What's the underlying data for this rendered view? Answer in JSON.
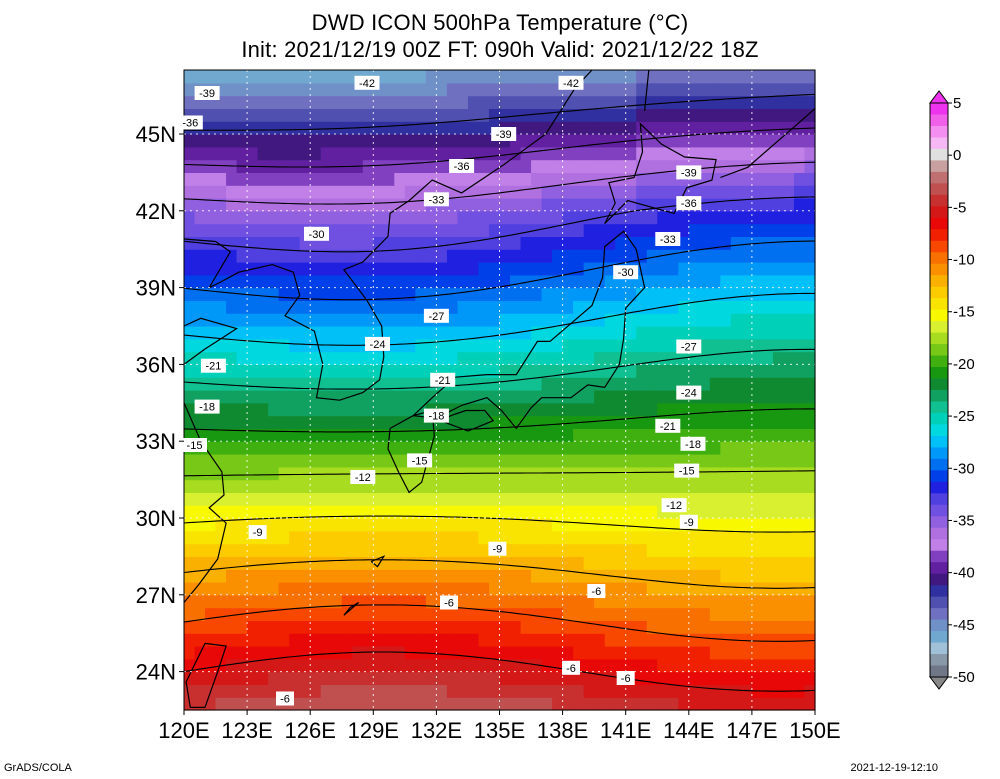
{
  "title": {
    "line1": "DWD ICON 500hPa Temperature (°C)",
    "line2": "Init: 2021/12/19 00Z  FT: 090h  Valid: 2021/12/22 18Z"
  },
  "axes": {
    "lat_labels": [
      "45N",
      "42N",
      "39N",
      "36N",
      "33N",
      "30N",
      "27N",
      "24N"
    ],
    "lat_values": [
      45,
      42,
      39,
      36,
      33,
      30,
      27,
      24
    ],
    "lon_labels": [
      "120E",
      "123E",
      "126E",
      "129E",
      "132E",
      "135E",
      "138E",
      "141E",
      "144E",
      "147E",
      "150E"
    ],
    "lon_values": [
      120,
      123,
      126,
      129,
      132,
      135,
      138,
      141,
      144,
      147,
      150
    ],
    "lat_range": [
      22.5,
      47.5
    ],
    "lon_range": [
      120,
      150
    ]
  },
  "colorbar": {
    "labels": [
      "5",
      "0",
      "-5",
      "-10",
      "-15",
      "-20",
      "-25",
      "-30",
      "-35",
      "-40",
      "-45",
      "-50"
    ],
    "label_values": [
      5,
      0,
      -5,
      -10,
      -15,
      -20,
      -25,
      -30,
      -35,
      -40,
      -45,
      -50
    ],
    "range": [
      -50,
      5
    ],
    "colors": [
      "#ee33ee",
      "#f060e8",
      "#f48ef0",
      "#f6b8f4",
      "#e0e0e0",
      "#c8a0a0",
      "#c07070",
      "#c05050",
      "#c83030",
      "#d41818",
      "#e80808",
      "#f02000",
      "#f84800",
      "#f87000",
      "#fa9000",
      "#fab000",
      "#fccc00",
      "#f8e400",
      "#f8f800",
      "#d8f030",
      "#a8dc20",
      "#78c818",
      "#40b010",
      "#189810",
      "#108a30",
      "#10a060",
      "#10c090",
      "#00d0b8",
      "#00d8e0",
      "#00c0f8",
      "#0098f8",
      "#0070f0",
      "#0040e8",
      "#2020e0",
      "#5040e0",
      "#7050e0",
      "#9060e0",
      "#b070e0",
      "#c080e8",
      "#8040c0",
      "#6020a0",
      "#401880",
      "#3030a0",
      "#5050b0",
      "#7070c0",
      "#7090c8",
      "#70a8d0",
      "#a0c0d8",
      "#8898a8",
      "#707888"
    ],
    "colors_note": "",
    "arrow_top_color": "#ee33ee",
    "arrow_bottom_color": "#888888"
  },
  "contour_labels": [
    {
      "text": "-42",
      "lon": 128.7,
      "lat": 47.0
    },
    {
      "text": "-42",
      "lon": 138.4,
      "lat": 47.0
    },
    {
      "text": "-39",
      "lon": 121.1,
      "lat": 46.6
    },
    {
      "text": "-39",
      "lon": 135.2,
      "lat": 45.0
    },
    {
      "text": "-39",
      "lon": 144.0,
      "lat": 43.5
    },
    {
      "text": "-36",
      "lon": 120.3,
      "lat": 45.45
    },
    {
      "text": "-36",
      "lon": 133.2,
      "lat": 43.75
    },
    {
      "text": "-36",
      "lon": 144.0,
      "lat": 42.3
    },
    {
      "text": "-33",
      "lon": 132.0,
      "lat": 42.45
    },
    {
      "text": "-33",
      "lon": 143.0,
      "lat": 40.9
    },
    {
      "text": "-30",
      "lon": 126.3,
      "lat": 41.1
    },
    {
      "text": "-30",
      "lon": 141.0,
      "lat": 39.6
    },
    {
      "text": "-27",
      "lon": 132.0,
      "lat": 37.9
    },
    {
      "text": "-27",
      "lon": 144.0,
      "lat": 36.7
    },
    {
      "text": "-24",
      "lon": 129.2,
      "lat": 36.8
    },
    {
      "text": "-24",
      "lon": 144.0,
      "lat": 34.9
    },
    {
      "text": "-21",
      "lon": 121.4,
      "lat": 35.95
    },
    {
      "text": "-21",
      "lon": 132.3,
      "lat": 35.4
    },
    {
      "text": "-21",
      "lon": 143.0,
      "lat": 33.6
    },
    {
      "text": "-18",
      "lon": 121.1,
      "lat": 34.35
    },
    {
      "text": "-18",
      "lon": 132.0,
      "lat": 34.0
    },
    {
      "text": "-18",
      "lon": 144.2,
      "lat": 32.9
    },
    {
      "text": "-15",
      "lon": 120.5,
      "lat": 32.85
    },
    {
      "text": "-15",
      "lon": 131.2,
      "lat": 32.25
    },
    {
      "text": "-15",
      "lon": 143.9,
      "lat": 31.85
    },
    {
      "text": "-12",
      "lon": 128.5,
      "lat": 31.6
    },
    {
      "text": "-12",
      "lon": 143.3,
      "lat": 30.5
    },
    {
      "text": "-9",
      "lon": 123.5,
      "lat": 29.45
    },
    {
      "text": "-9",
      "lon": 134.9,
      "lat": 28.8
    },
    {
      "text": "-9",
      "lon": 144.0,
      "lat": 29.85
    },
    {
      "text": "-6",
      "lon": 132.6,
      "lat": 26.7
    },
    {
      "text": "-6",
      "lon": 139.6,
      "lat": 27.15
    },
    {
      "text": "-6",
      "lon": 138.4,
      "lat": 24.15
    },
    {
      "text": "-6",
      "lon": 141.0,
      "lat": 23.75
    },
    {
      "text": "-6",
      "lon": 124.8,
      "lat": 22.95
    }
  ],
  "footer": {
    "left": "GrADS/COLA",
    "right": "2021-12-19-12:10"
  }
}
